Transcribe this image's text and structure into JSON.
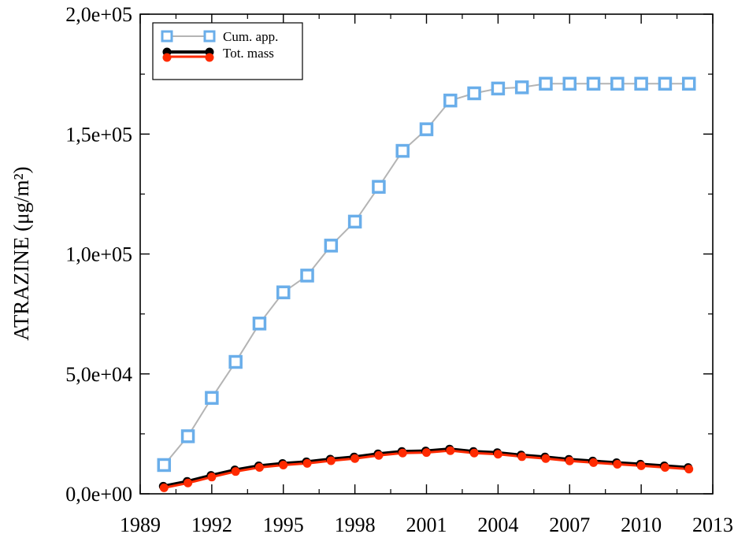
{
  "chart_data": {
    "type": "line",
    "ylabel": "ATRAZINE (μg/m²)",
    "xlabel": "",
    "xlim": [
      1989,
      2013
    ],
    "ylim": [
      0,
      200000
    ],
    "x_ticks": [
      1989,
      1992,
      1995,
      1998,
      2001,
      2004,
      2007,
      2010,
      2013
    ],
    "y_ticks": [
      0,
      50000,
      100000,
      150000,
      200000
    ],
    "x_tick_labels": [
      "1989",
      "1992",
      "1995",
      "1998",
      "2001",
      "2004",
      "2007",
      "2010",
      "2013"
    ],
    "y_tick_labels": [
      "0,0e+00",
      "5,0e+04",
      "1,0e+05",
      "1,5e+05",
      "2,0e+05"
    ],
    "grid": false,
    "legend_position": "top-left",
    "x": [
      1990,
      1991,
      1992,
      1993,
      1994,
      1995,
      1996,
      1997,
      1998,
      1999,
      2000,
      2001,
      2002,
      2003,
      2004,
      2005,
      2006,
      2007,
      2008,
      2009,
      2010,
      2011,
      2012
    ],
    "series": [
      {
        "name": "Cum. app.",
        "marker": "square",
        "marker_color": "#6aaeea",
        "line_color": "#b4b4b4",
        "values": [
          12000,
          24000,
          40000,
          55000,
          71000,
          84000,
          91000,
          103500,
          113500,
          128000,
          143000,
          152000,
          164000,
          167000,
          169000,
          169500,
          171000,
          171000,
          171000,
          171000,
          171000,
          171000,
          171000
        ]
      },
      {
        "name": "Tot. mass",
        "marker": "circle",
        "marker_color": "#ff2a00",
        "line_color": "#000000",
        "shadow_color": "#000000",
        "values": [
          2500,
          4500,
          7000,
          9300,
          11000,
          12000,
          12700,
          13800,
          14700,
          16000,
          17000,
          17200,
          18000,
          17000,
          16500,
          15500,
          14700,
          13700,
          13000,
          12300,
          11700,
          11000,
          10300
        ]
      }
    ]
  }
}
